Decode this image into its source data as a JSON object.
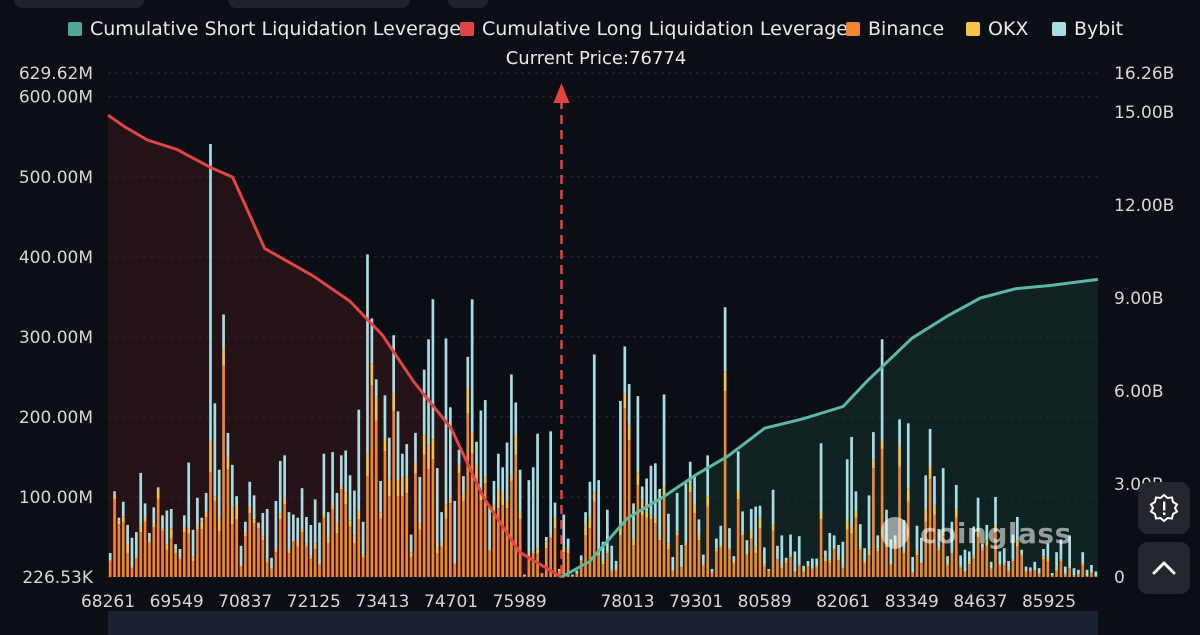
{
  "legend": [
    {
      "name": "Cumulative Short Liquidation Leverage",
      "color": "#4ea896"
    },
    {
      "name": "Cumulative Long Liquidation Leverage",
      "color": "#e04444"
    },
    {
      "name": "Binance",
      "color": "#f0862f"
    },
    {
      "name": "OKX",
      "color": "#f5c24a"
    },
    {
      "name": "Bybit",
      "color": "#a8dde4"
    }
  ],
  "current_price_label": "Current Price:76774",
  "watermark": "coinglass",
  "chart_data": {
    "type": "bar",
    "current_price": 76774,
    "x_ticks": [
      "68261",
      "69549",
      "70837",
      "72125",
      "73413",
      "74701",
      "75989",
      "78013",
      "79301",
      "80589",
      "82061",
      "83349",
      "84637",
      "85925"
    ],
    "x_range": [
      68261,
      86845
    ],
    "y_left": {
      "ticks": [
        "629.62M",
        "600.00M",
        "500.00M",
        "400.00M",
        "300.00M",
        "200.00M",
        "100.00M",
        "226.53K"
      ],
      "range": [
        0,
        629.62
      ],
      "unit": "M"
    },
    "y_right": {
      "ticks": [
        "16.26B",
        "15.00B",
        "12.00B",
        "9.00B",
        "6.00B",
        "3.00B",
        "0"
      ],
      "range": [
        0,
        16.26
      ],
      "unit": "B"
    },
    "series": [
      {
        "name": "Cumulative Long Liquidation Leverage",
        "type": "area",
        "axis": "right",
        "x": [
          68261,
          68600,
          69000,
          69549,
          70200,
          70600,
          70837,
          71200,
          72125,
          72800,
          73413,
          74000,
          74701,
          75300,
          75989,
          76774
        ],
        "y": [
          14.9,
          14.5,
          14.1,
          13.8,
          13.2,
          12.9,
          12.0,
          10.6,
          9.7,
          8.9,
          7.8,
          6.3,
          4.8,
          2.6,
          0.8,
          0.0
        ]
      },
      {
        "name": "Cumulative Short Liquidation Leverage",
        "type": "area",
        "axis": "right",
        "x": [
          76774,
          77300,
          78013,
          78700,
          79301,
          79900,
          80589,
          81300,
          82061,
          82500,
          83349,
          84000,
          84637,
          85300,
          85925,
          86845
        ],
        "y": [
          0.0,
          0.5,
          1.9,
          2.6,
          3.3,
          3.9,
          4.8,
          5.1,
          5.5,
          6.3,
          7.7,
          8.4,
          9.0,
          9.3,
          9.4,
          9.6
        ]
      },
      {
        "name": "Binance",
        "type": "bar",
        "axis": "left",
        "stacked": true,
        "values": [
          19,
          97,
          66,
          68,
          30,
          11,
          23,
          56,
          69,
          43,
          62,
          98,
          58,
          34,
          48,
          30,
          22,
          56,
          54,
          20,
          59,
          60,
          75,
          131,
          95,
          57,
          264,
          134,
          66,
          72,
          13,
          51,
          80,
          67,
          61,
          46,
          18,
          10,
          31,
          72,
          91,
          30,
          44,
          38,
          56,
          38,
          23,
          35,
          15,
          74,
          42,
          84,
          55,
          109,
          91,
          63,
          42,
          72,
          24,
          126,
          239,
          195,
          73,
          157,
          101,
          208,
          101,
          101,
          105,
          25,
          129,
          59,
          153,
          135,
          147,
          30,
          38,
          73,
          92,
          16,
          130,
          95,
          204,
          154,
          119,
          96,
          117,
          33,
          79,
          86,
          90,
          86,
          120,
          153,
          72,
          1,
          22,
          29,
          29,
          5,
          36,
          49,
          61,
          7,
          31,
          30,
          1,
          4,
          20,
          52,
          61,
          94,
          27,
          16,
          30,
          7,
          8,
          52,
          211,
          171,
          40,
          115,
          77,
          74,
          72,
          67,
          46,
          101,
          35,
          7,
          52,
          12,
          39,
          106,
          80,
          46,
          14,
          88,
          5,
          32,
          37,
          232,
          34,
          17,
          97,
          52,
          28,
          48,
          30,
          61,
          13,
          7,
          58,
          22,
          11,
          18,
          25,
          6,
          14,
          6,
          13,
          9,
          12,
          72,
          20,
          18,
          34,
          21,
          11,
          59,
          54,
          74,
          34,
          17,
          27,
          136,
          32,
          160,
          37,
          15,
          39,
          138,
          30,
          94,
          5,
          27,
          17,
          69,
          122,
          78,
          33,
          51,
          14,
          30,
          74,
          12,
          6,
          16,
          23,
          50,
          33,
          39,
          10,
          56,
          14,
          15,
          7,
          20,
          38,
          27,
          7,
          7,
          8,
          4,
          22,
          20,
          2,
          8,
          20,
          3,
          11,
          2,
          3,
          15,
          1,
          5,
          1
        ]
      },
      {
        "name": "OKX",
        "type": "bar",
        "axis": "left",
        "stacked": true,
        "values": [
          2,
          7,
          5,
          8,
          10,
          2,
          2,
          8,
          6,
          2,
          3,
          11,
          3,
          7,
          13,
          4,
          2,
          7,
          7,
          6,
          4,
          11,
          6,
          39,
          6,
          16,
          20,
          15,
          21,
          18,
          2,
          5,
          7,
          5,
          6,
          5,
          5,
          1,
          4,
          7,
          8,
          4,
          1,
          7,
          4,
          4,
          4,
          7,
          1,
          4,
          8,
          6,
          13,
          4,
          15,
          8,
          10,
          11,
          4,
          29,
          28,
          30,
          8,
          16,
          22,
          21,
          19,
          24,
          21,
          6,
          14,
          8,
          25,
          29,
          25,
          7,
          6,
          18,
          6,
          2,
          9,
          9,
          32,
          27,
          21,
          11,
          9,
          2,
          11,
          24,
          15,
          9,
          8,
          25,
          10,
          0,
          8,
          3,
          7,
          0,
          8,
          4,
          14,
          1,
          8,
          4,
          0,
          1,
          1,
          13,
          14,
          12,
          8,
          4,
          2,
          2,
          2,
          13,
          18,
          18,
          8,
          16,
          19,
          8,
          6,
          6,
          4,
          11,
          7,
          1,
          5,
          1,
          4,
          11,
          10,
          7,
          2,
          13,
          1,
          4,
          3,
          25,
          2,
          3,
          11,
          3,
          2,
          10,
          7,
          13,
          3,
          1,
          8,
          1,
          3,
          3,
          2,
          1,
          2,
          2,
          2,
          2,
          2,
          8,
          4,
          3,
          2,
          4,
          2,
          11,
          10,
          8,
          4,
          3,
          7,
          11,
          4,
          10,
          4,
          1,
          3,
          25,
          3,
          17,
          1,
          6,
          1,
          15,
          16,
          11,
          4,
          5,
          3,
          3,
          10,
          2,
          1,
          4,
          4,
          6,
          3,
          7,
          1,
          9,
          2,
          2,
          2,
          2,
          8,
          2,
          0,
          2,
          2,
          1,
          4,
          4,
          0,
          2,
          2,
          1,
          2,
          0,
          1,
          2,
          0,
          1,
          0
        ]
      },
      {
        "name": "Bybit",
        "type": "bar",
        "axis": "left",
        "stacked": true,
        "values": [
          9,
          3,
          3,
          18,
          25,
          36,
          31,
          66,
          17,
          10,
          22,
          3,
          16,
          42,
          24,
          7,
          11,
          14,
          82,
          33,
          36,
          3,
          24,
          371,
          116,
          61,
          44,
          31,
          53,
          11,
          24,
          13,
          32,
          30,
          1,
          29,
          62,
          13,
          60,
          66,
          53,
          47,
          33,
          29,
          51,
          33,
          38,
          55,
          52,
          76,
          31,
          66,
          37,
          39,
          52,
          56,
          56,
          126,
          41,
          248,
          56,
          22,
          39,
          54,
          51,
          73,
          87,
          29,
          40,
          22,
          37,
          58,
          81,
          133,
          175,
          99,
          37,
          207,
          114,
          77,
          20,
          22,
          39,
          166,
          29,
          101,
          95,
          54,
          30,
          44,
          32,
          73,
          125,
          40,
          52,
          2,
          91,
          105,
          143,
          0,
          6,
          129,
          18,
          2,
          39,
          14,
          2,
          3,
          6,
          16,
          44,
          172,
          86,
          24,
          52,
          30,
          10,
          155,
          59,
          52,
          44,
          95,
          17,
          41,
          61,
          69,
          60,
          116,
          37,
          17,
          48,
          27,
          74,
          27,
          35,
          19,
          12,
          51,
          4,
          12,
          24,
          80,
          25,
          6,
          49,
          27,
          16,
          27,
          51,
          15,
          21,
          2,
          43,
          16,
          38,
          3,
          26,
          25,
          35,
          6,
          5,
          12,
          9,
          87,
          9,
          34,
          16,
          15,
          31,
          77,
          111,
          25,
          28,
          16,
          68,
          34,
          16,
          127,
          43,
          31,
          10,
          34,
          38,
          81,
          19,
          31,
          31,
          43,
          47,
          37,
          23,
          80,
          9,
          36,
          31,
          13,
          27,
          12,
          36,
          43,
          6,
          19,
          8,
          35,
          16,
          19,
          11,
          31,
          29,
          5,
          6,
          3,
          9,
          6,
          9,
          18,
          3,
          21,
          25,
          9,
          39,
          9,
          5,
          14,
          8,
          9,
          6
        ]
      }
    ]
  }
}
